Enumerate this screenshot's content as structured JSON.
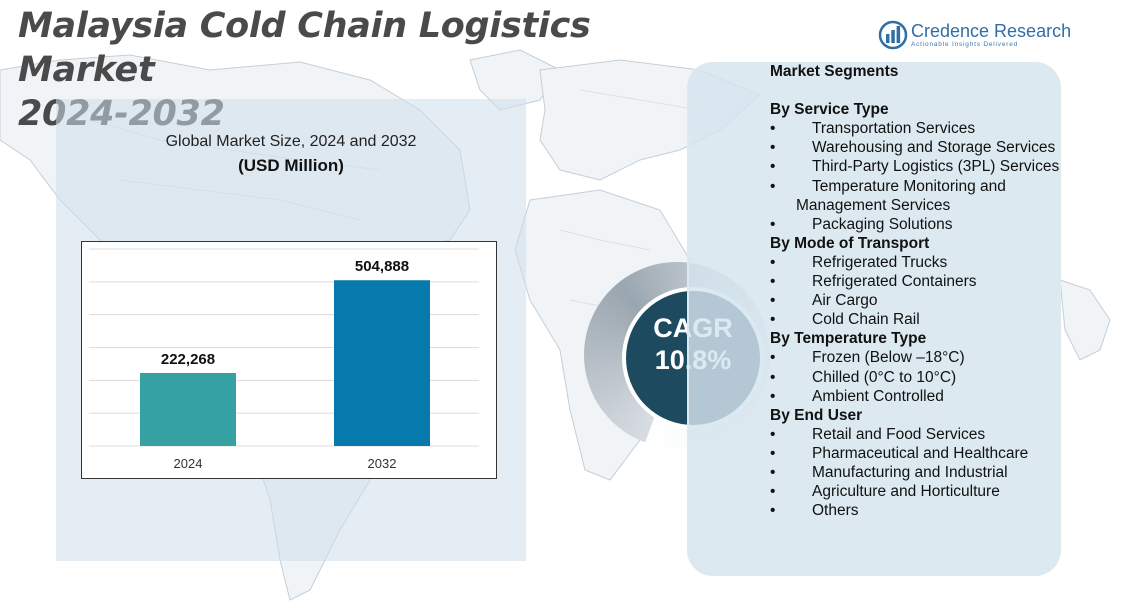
{
  "title": {
    "line1": "Malaysia Cold Chain Logistics Market",
    "line2": "2024-2032"
  },
  "logo": {
    "name": "Credence Research",
    "tagline": "Actionable Insights Delivered",
    "icon": "bar-chart-logo-icon",
    "color": "#2f6fa6"
  },
  "chart_data": {
    "type": "bar",
    "title": "Global Market Size, 2024 and 2032",
    "unit_label": "(USD Million)",
    "categories": [
      "2024",
      "2032"
    ],
    "values": [
      222268,
      504888
    ],
    "value_labels": [
      "222,268",
      "504,888"
    ],
    "colors": [
      "#35a1a2",
      "#0879ad"
    ],
    "ylim": [
      0,
      600000
    ],
    "grid": true,
    "xlabel": "",
    "ylabel": ""
  },
  "cagr": {
    "label": "CAGR",
    "value": "10.8%",
    "color": "#1d4a5e"
  },
  "segments": {
    "title": "Market Segments",
    "groups": [
      {
        "heading": "By Service Type",
        "items": [
          "Transportation Services",
          "Warehousing and Storage Services",
          "Third-Party Logistics (3PL) Services",
          "Temperature Monitoring and Management Services",
          "Packaging Solutions"
        ]
      },
      {
        "heading": "By Mode of Transport",
        "items": [
          "Refrigerated Trucks",
          "Refrigerated Containers",
          "Air Cargo",
          "Cold Chain Rail"
        ]
      },
      {
        "heading": "By Temperature Type",
        "items": [
          "Frozen (Below –18°C)",
          "Chilled (0°C to 10°C)",
          "Ambient Controlled"
        ]
      },
      {
        "heading": "By End User",
        "items": [
          "Retail and Food Services",
          "Pharmaceutical and Healthcare",
          "Manufacturing and Industrial",
          "Agriculture and Horticulture",
          "Others"
        ]
      }
    ]
  }
}
